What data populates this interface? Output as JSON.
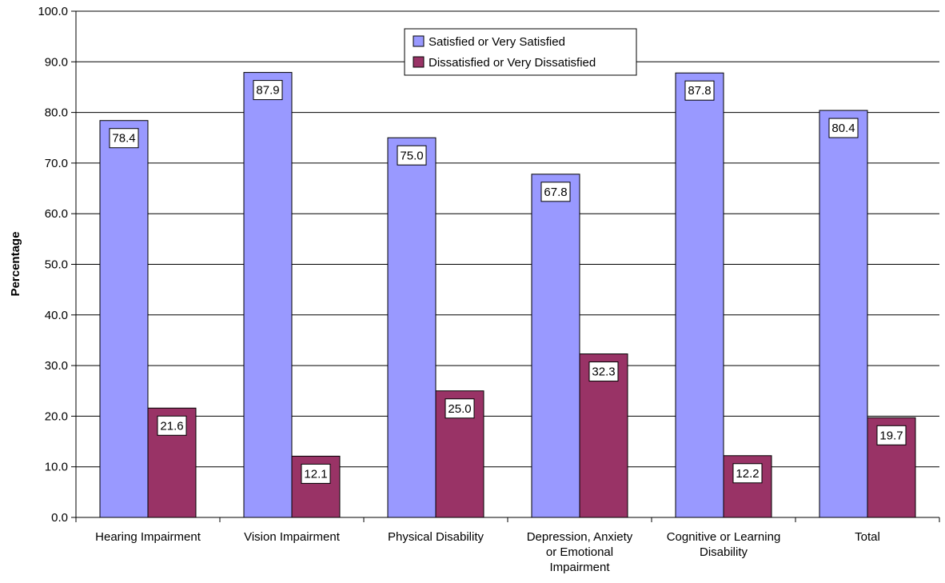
{
  "chart_data": {
    "type": "bar",
    "title": "",
    "xlabel": "",
    "ylabel": "Percentage",
    "ylim": [
      0,
      100
    ],
    "y_ticks": [
      "0.0",
      "10.0",
      "20.0",
      "30.0",
      "40.0",
      "50.0",
      "60.0",
      "70.0",
      "80.0",
      "90.0",
      "100.0"
    ],
    "grid": "horizontal",
    "legend_position": "top-center",
    "categories": [
      [
        "Hearing Impairment"
      ],
      [
        "Vision Impairment"
      ],
      [
        "Physical Disability"
      ],
      [
        "Depression, Anxiety",
        "or Emotional",
        "Impairment"
      ],
      [
        "Cognitive or Learning",
        "Disability"
      ],
      [
        "Total"
      ]
    ],
    "series": [
      {
        "name": "Satisfied or Very Satisfied",
        "color": "#9999ff",
        "values": [
          78.4,
          87.9,
          75.0,
          67.8,
          87.8,
          80.4
        ],
        "labels": [
          "78.4",
          "87.9",
          "75.0",
          "67.8",
          "87.8",
          "80.4"
        ]
      },
      {
        "name": "Dissatisfied or Very Dissatisfied",
        "color": "#993366",
        "values": [
          21.6,
          12.1,
          25.0,
          32.3,
          12.2,
          19.7
        ],
        "labels": [
          "21.6",
          "12.1",
          "25.0",
          "32.3",
          "12.2",
          "19.7"
        ]
      }
    ]
  }
}
